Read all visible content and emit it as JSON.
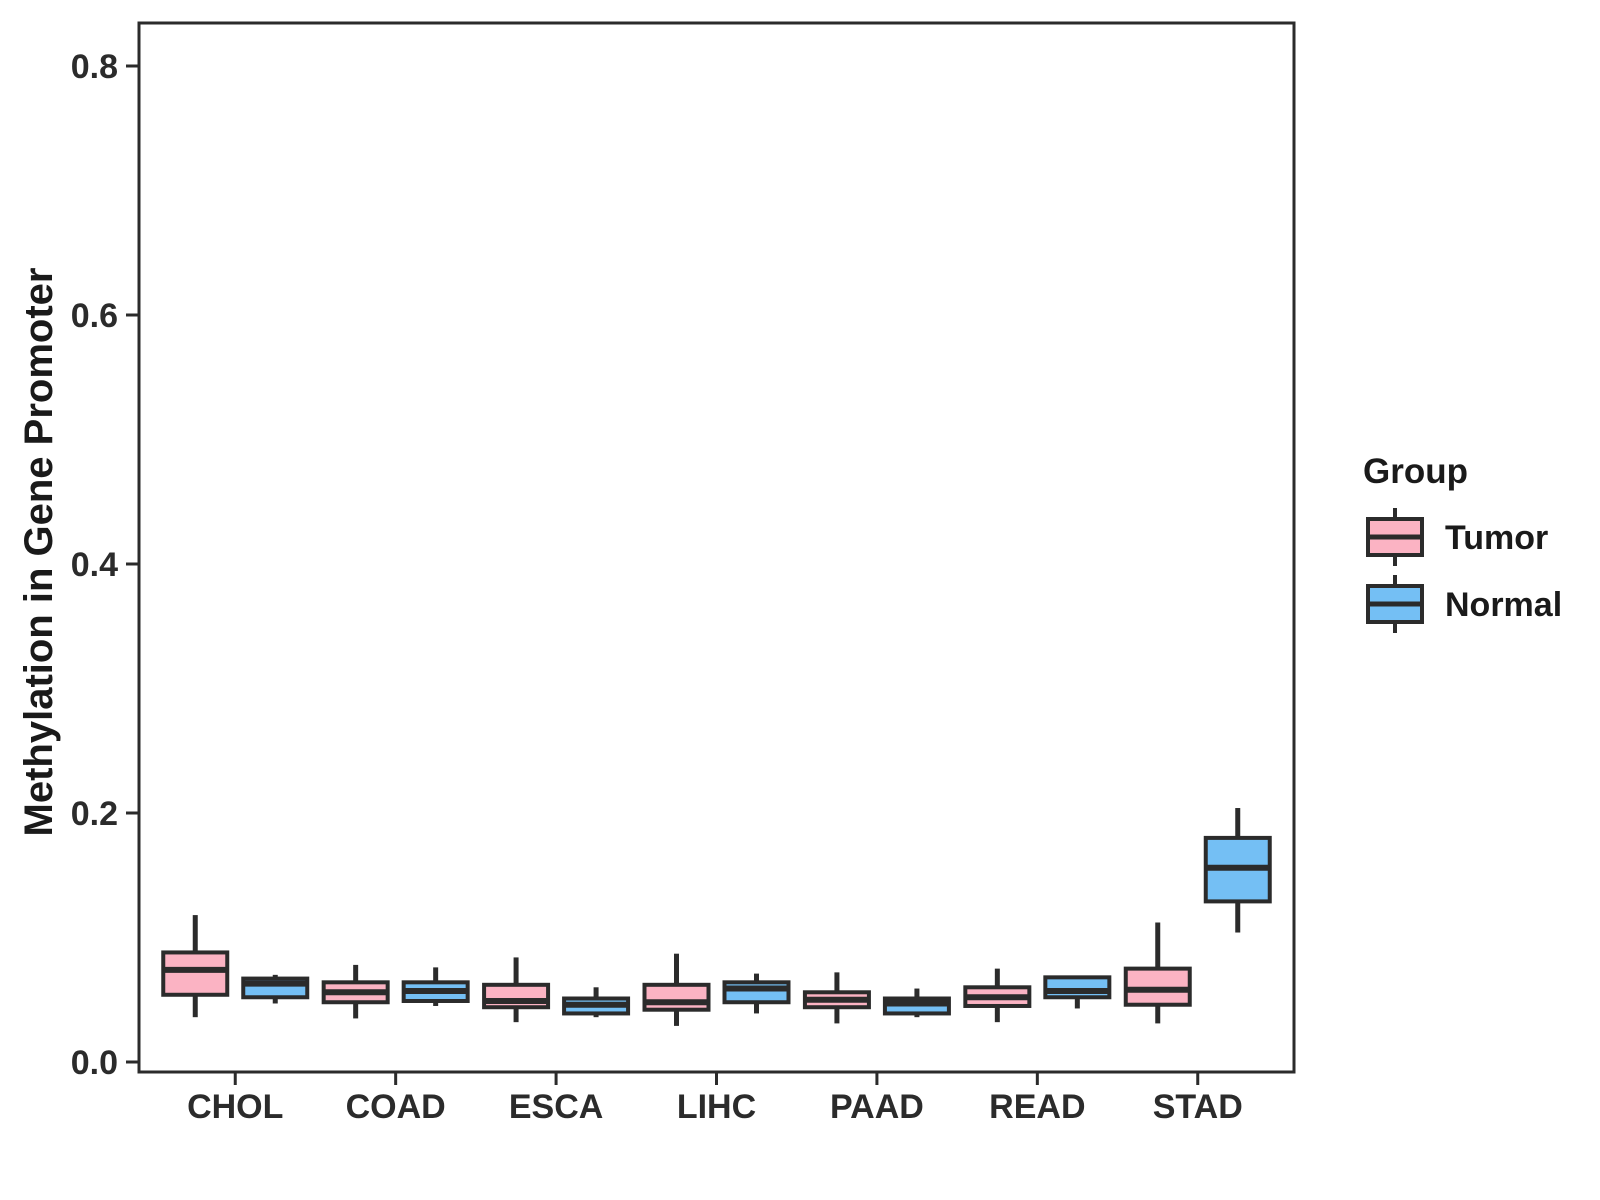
{
  "chart_data": {
    "type": "boxplot",
    "title": "",
    "xlabel": "",
    "ylabel": "Methylation in Gene Promoter",
    "categories": [
      "CHOL",
      "COAD",
      "ESCA",
      "LIHC",
      "PAAD",
      "READ",
      "STAD"
    ],
    "y_ticks": [
      0.0,
      0.2,
      0.4,
      0.6,
      0.8
    ],
    "y_tick_labels": [
      "0.0",
      "0.2",
      "0.4",
      "0.6",
      "0.8"
    ],
    "ylim": [
      0,
      0.835
    ],
    "grid": false,
    "legend_position": "right",
    "legend_title": "Group",
    "line_color": "#2b2b2b",
    "background_color": "#ffffff",
    "series": [
      {
        "name": "Tumor",
        "fill": "#fbb3c3",
        "boxes": [
          {
            "category": "CHOL",
            "low": 0.036,
            "q1": 0.054,
            "median": 0.074,
            "q3": 0.088,
            "high": 0.118
          },
          {
            "category": "COAD",
            "low": 0.035,
            "q1": 0.048,
            "median": 0.056,
            "q3": 0.064,
            "high": 0.078
          },
          {
            "category": "ESCA",
            "low": 0.032,
            "q1": 0.044,
            "median": 0.049,
            "q3": 0.062,
            "high": 0.084
          },
          {
            "category": "LIHC",
            "low": 0.029,
            "q1": 0.042,
            "median": 0.048,
            "q3": 0.062,
            "high": 0.087
          },
          {
            "category": "PAAD",
            "low": 0.031,
            "q1": 0.044,
            "median": 0.05,
            "q3": 0.056,
            "high": 0.072
          },
          {
            "category": "READ",
            "low": 0.032,
            "q1": 0.045,
            "median": 0.052,
            "q3": 0.06,
            "high": 0.075
          },
          {
            "category": "STAD",
            "low": 0.031,
            "q1": 0.046,
            "median": 0.058,
            "q3": 0.075,
            "high": 0.112
          }
        ]
      },
      {
        "name": "Normal",
        "fill": "#74bff4",
        "boxes": [
          {
            "category": "CHOL",
            "low": 0.047,
            "q1": 0.052,
            "median": 0.063,
            "q3": 0.067,
            "high": 0.07
          },
          {
            "category": "COAD",
            "low": 0.045,
            "q1": 0.049,
            "median": 0.057,
            "q3": 0.064,
            "high": 0.076
          },
          {
            "category": "ESCA",
            "low": 0.036,
            "q1": 0.039,
            "median": 0.046,
            "q3": 0.051,
            "high": 0.06
          },
          {
            "category": "LIHC",
            "low": 0.039,
            "q1": 0.048,
            "median": 0.059,
            "q3": 0.064,
            "high": 0.071
          },
          {
            "category": "PAAD",
            "low": 0.036,
            "q1": 0.039,
            "median": 0.047,
            "q3": 0.051,
            "high": 0.059
          },
          {
            "category": "READ",
            "low": 0.043,
            "q1": 0.052,
            "median": 0.057,
            "q3": 0.068,
            "high": 0.068
          },
          {
            "category": "STAD",
            "low": 0.104,
            "q1": 0.129,
            "median": 0.156,
            "q3": 0.18,
            "high": 0.204
          }
        ]
      }
    ]
  }
}
